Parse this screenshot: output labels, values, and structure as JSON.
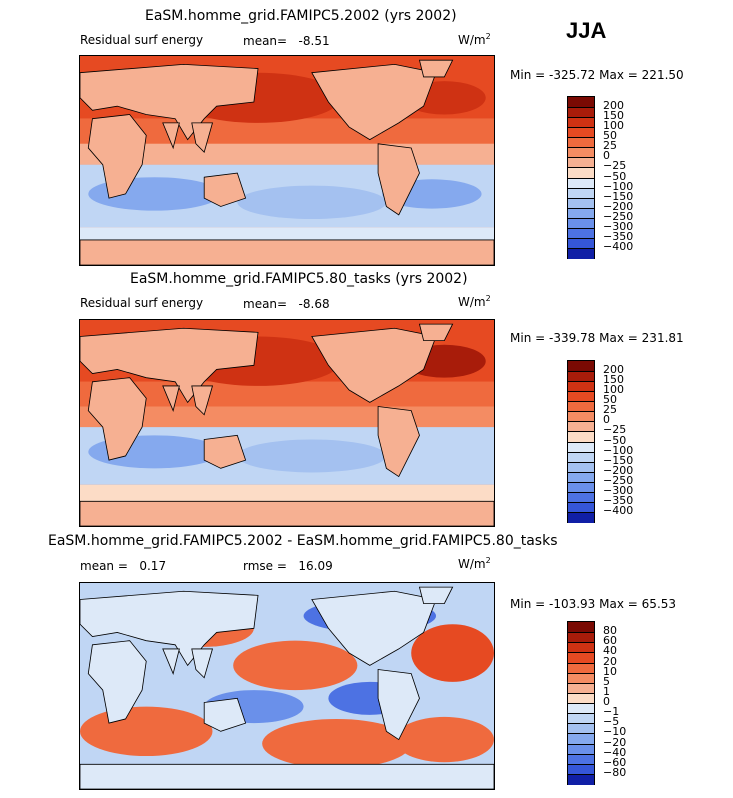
{
  "season": "JJA",
  "units": {
    "base": "W/m",
    "exp": "2"
  },
  "palette_warm": [
    "#fcdcc6",
    "#f6b092",
    "#f48c63",
    "#ef6a3e",
    "#e64a22",
    "#cf3213",
    "#a81c0a",
    "#7a0a03"
  ],
  "palette_cool": [
    "#dde9f8",
    "#c0d6f4",
    "#a4c1f0",
    "#85a9ee",
    "#6a90ea",
    "#4d72e3",
    "#3556d8",
    "#2038c8",
    "#101fa6",
    "#070f80"
  ],
  "panels": [
    {
      "title": "EaSM.homme_grid.FAMIPC5.2002 (yrs 2002)",
      "variable": "Residual surf energy",
      "stat_label": "mean=",
      "stat_value": "-8.51",
      "min_label": "Min =",
      "min_value": "-325.72",
      "max_label": "Max =",
      "max_value": "221.50"
    },
    {
      "title": "EaSM.homme_grid.FAMIPC5.80_tasks (yrs 2002)",
      "variable": "Residual surf energy",
      "stat_label": "mean=",
      "stat_value": "-8.68",
      "min_label": "Min =",
      "min_value": "-339.78",
      "max_label": "Max =",
      "max_value": "231.81"
    },
    {
      "title": "EaSM.homme_grid.FAMIPC5.2002 - EaSM.homme_grid.FAMIPC5.80_tasks",
      "mean_label": "mean =",
      "mean_value": "0.17",
      "rmse_label": "rmse =",
      "rmse_value": "16.09",
      "min_label": "Min =",
      "min_value": "-103.93",
      "max_label": "Max =",
      "max_value": "65.53"
    }
  ],
  "chart_data": [
    {
      "type": "heatmap",
      "title": "EaSM.homme_grid.FAMIPC5.2002 (yrs 2002)",
      "variable": "Residual surf energy",
      "units": "W/m^2",
      "mean": -8.51,
      "min": -325.72,
      "max": 221.5,
      "legend_levels": [
        "200",
        "150",
        "100",
        "50",
        "25",
        "0",
        "-25",
        "-50",
        "-100",
        "-150",
        "-200",
        "-250",
        "-300",
        "-350",
        "-400"
      ],
      "legend_colors": [
        "#7a0a03",
        "#a81c0a",
        "#cf3213",
        "#e64a22",
        "#ef6a3e",
        "#f48c63",
        "#f6b092",
        "#fcdcc6",
        "#dde9f8",
        "#c0d6f4",
        "#a4c1f0",
        "#85a9ee",
        "#6a90ea",
        "#4d72e3",
        "#3556d8",
        "#101fa6"
      ]
    },
    {
      "type": "heatmap",
      "title": "EaSM.homme_grid.FAMIPC5.80_tasks (yrs 2002)",
      "variable": "Residual surf energy",
      "units": "W/m^2",
      "mean": -8.68,
      "min": -339.78,
      "max": 231.81,
      "legend_levels": [
        "200",
        "150",
        "100",
        "50",
        "25",
        "0",
        "-25",
        "-50",
        "-100",
        "-150",
        "-200",
        "-250",
        "-300",
        "-350",
        "-400"
      ],
      "legend_colors": [
        "#7a0a03",
        "#a81c0a",
        "#cf3213",
        "#e64a22",
        "#ef6a3e",
        "#f48c63",
        "#f6b092",
        "#fcdcc6",
        "#dde9f8",
        "#c0d6f4",
        "#a4c1f0",
        "#85a9ee",
        "#6a90ea",
        "#4d72e3",
        "#3556d8",
        "#101fa6"
      ]
    },
    {
      "type": "heatmap",
      "title": "EaSM.homme_grid.FAMIPC5.2002 - EaSM.homme_grid.FAMIPC5.80_tasks",
      "units": "W/m^2",
      "mean": 0.17,
      "rmse": 16.09,
      "min": -103.93,
      "max": 65.53,
      "legend_levels": [
        "80",
        "60",
        "40",
        "20",
        "10",
        "5",
        "1",
        "0",
        "-1",
        "-5",
        "-10",
        "-20",
        "-40",
        "-60",
        "-80"
      ],
      "legend_colors": [
        "#7a0a03",
        "#a81c0a",
        "#cf3213",
        "#e64a22",
        "#ef6a3e",
        "#f48c63",
        "#f6b092",
        "#fcdcc6",
        "#dde9f8",
        "#c0d6f4",
        "#a4c1f0",
        "#85a9ee",
        "#6a90ea",
        "#4d72e3",
        "#3556d8",
        "#101fa6"
      ]
    }
  ]
}
